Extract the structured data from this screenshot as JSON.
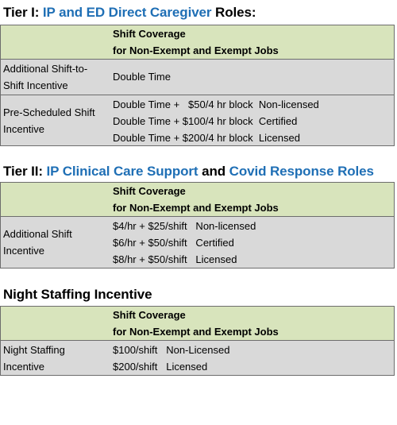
{
  "tier1": {
    "title_pre": "Tier I:  ",
    "title_hl": "IP and ED Direct Caregiver",
    "title_post": " Roles:",
    "header_line1": "Shift Coverage",
    "header_line2": "for Non-Exempt and Exempt Jobs",
    "rows": [
      {
        "label_lines": [
          "Additional Shift-to-",
          "Shift Incentive"
        ],
        "values": [
          "Double Time"
        ]
      },
      {
        "label_lines": [
          "Pre-Scheduled Shift",
          "Incentive"
        ],
        "values": [
          "Double Time +   $50/4 hr block  Non-licensed",
          "Double Time + $100/4 hr block  Certified",
          "Double Time + $200/4 hr block  Licensed"
        ]
      }
    ]
  },
  "tier2": {
    "title_pre": "Tier II: ",
    "title_hl1": "IP Clinical Care Support",
    "title_mid": " and ",
    "title_hl2": "Covid Response Roles",
    "header_line1": "Shift Coverage",
    "header_line2": "for Non-Exempt and Exempt Jobs",
    "rows": [
      {
        "label_lines": [
          "Additional Shift",
          "Incentive"
        ],
        "values": [
          "$4/hr + $25/shift   Non-licensed",
          "$6/hr + $50/shift   Certified",
          "$8/hr + $50/shift   Licensed"
        ]
      }
    ]
  },
  "night": {
    "title": "Night Staffing Incentive",
    "header_line1": "Shift Coverage",
    "header_line2": "for Non-Exempt and Exempt Jobs",
    "rows": [
      {
        "label_lines": [
          "Night Staffing",
          "Incentive"
        ],
        "values": [
          "$100/shift   Non-Licensed",
          "$200/shift   Licensed"
        ]
      }
    ]
  },
  "colors": {
    "accent_blue": "#1f6fb5",
    "header_green": "#d8e4bc",
    "row_gray": "#d9d9d9"
  }
}
